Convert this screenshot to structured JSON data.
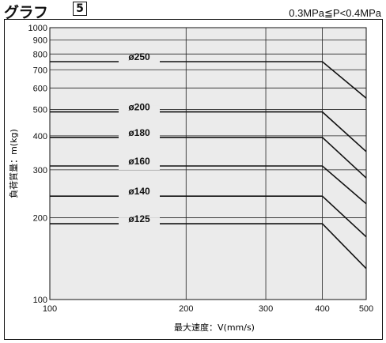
{
  "header": {
    "title": "グラフ",
    "number": "5",
    "condition": "0.3MPa≦P<0.4MPa"
  },
  "chart_data": {
    "type": "line",
    "title": "グラフ5",
    "subtitle": "0.3MPa≦P<0.4MPa",
    "xlabel": "最大速度：V(mm/s)",
    "ylabel": "負荷質量：m(kg)",
    "xscale": "log",
    "yscale": "log",
    "xlim": [
      100,
      500
    ],
    "ylim": [
      100,
      1000
    ],
    "xticks": [
      "100",
      "200",
      "300",
      "400",
      "500"
    ],
    "yticks": [
      "100",
      "200",
      "300",
      "400",
      "500",
      "600",
      "700",
      "800",
      "900",
      "1000"
    ],
    "grid": true,
    "background": "#ebebeb",
    "line_color": "#111111",
    "series": [
      {
        "name": "ø250",
        "x": [
          100,
          400,
          500
        ],
        "y": [
          750,
          750,
          550
        ]
      },
      {
        "name": "ø200",
        "x": [
          100,
          400,
          500
        ],
        "y": [
          490,
          490,
          350
        ]
      },
      {
        "name": "ø180",
        "x": [
          100,
          400,
          500
        ],
        "y": [
          395,
          395,
          280
        ]
      },
      {
        "name": "ø160",
        "x": [
          100,
          400,
          500
        ],
        "y": [
          310,
          310,
          225
        ]
      },
      {
        "name": "ø140",
        "x": [
          100,
          400,
          500
        ],
        "y": [
          240,
          240,
          170
        ]
      },
      {
        "name": "ø125",
        "x": [
          100,
          400,
          500
        ],
        "y": [
          190,
          190,
          130
        ]
      }
    ]
  }
}
